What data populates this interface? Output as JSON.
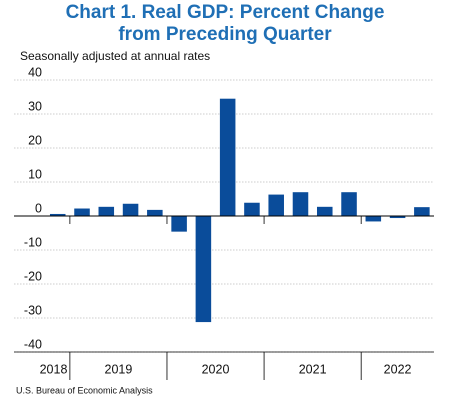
{
  "chart_data": {
    "type": "bar",
    "title": [
      "Chart 1. Real GDP: Percent Change",
      "from Preceding Quarter"
    ],
    "subtitle": "Seasonally adjusted at annual rates",
    "source": "U.S. Bureau of Economic Analysis",
    "color": "#0a4c9a",
    "groups": [
      {
        "label": "2018",
        "values": [
          0.6
        ]
      },
      {
        "label": "2019",
        "values": [
          2.2,
          2.7,
          3.6,
          1.8
        ]
      },
      {
        "label": "2020",
        "values": [
          -4.6,
          -31.2,
          34.5,
          3.9
        ]
      },
      {
        "label": "2021",
        "values": [
          6.3,
          7.0,
          2.7,
          7.0
        ]
      },
      {
        "label": "2022",
        "values": [
          -1.6,
          -0.6,
          2.6
        ]
      }
    ],
    "ylim": [
      -40,
      40
    ],
    "yticks": [
      -40,
      -30,
      -20,
      -10,
      0,
      10,
      20,
      30,
      40
    ],
    "grid": true
  }
}
